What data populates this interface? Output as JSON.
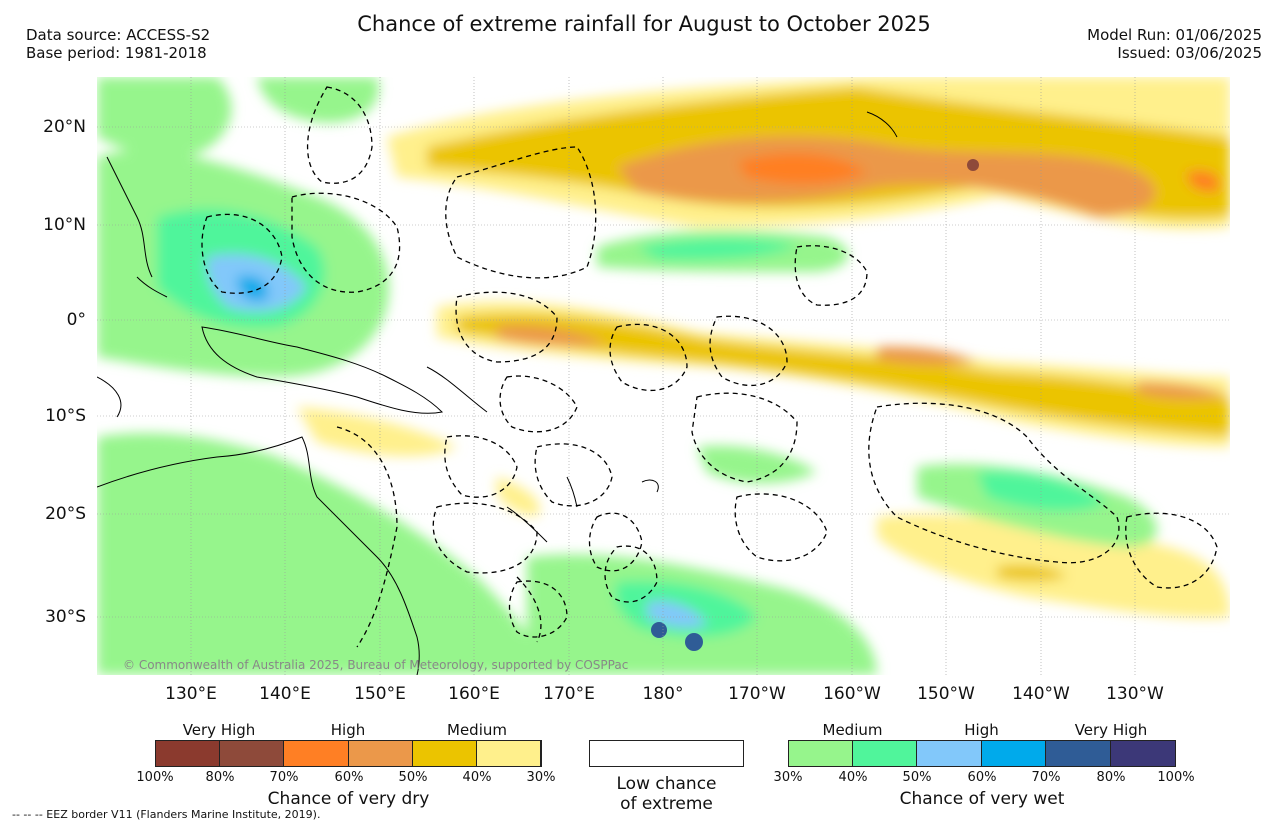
{
  "title": "Chance of extreme rainfall for August to October 2025",
  "data_source": "Data source: ACCESS-S2",
  "base_period": "Base period: 1981-2018",
  "model_run": "Model Run: 01/06/2025",
  "issued": "Issued: 03/06/2025",
  "copyright": "© Commonwealth of Australia 2025, Bureau of Meteorology, supported by COSPPac",
  "eez_note": "-- -- -- EEZ border V11 (Flanders Marine Institute, 2019).",
  "lat_labels": [
    "20°N",
    "10°N",
    "0°",
    "10°S",
    "20°S",
    "30°S"
  ],
  "lon_labels": [
    "130°E",
    "140°E",
    "150°E",
    "160°E",
    "170°E",
    "180°",
    "170°W",
    "160°W",
    "150°W",
    "140°W",
    "130°W"
  ],
  "dry_scale": {
    "categories": [
      "Very High",
      "High",
      "Medium"
    ],
    "colors": [
      "#8b3a2e",
      "#8e4a3a",
      "#ff7f24",
      "#eb984a",
      "#ebc400",
      "#fff08c"
    ],
    "ticks": [
      "100%",
      "80%",
      "70%",
      "60%",
      "50%",
      "40%",
      "30%"
    ],
    "caption": "Chance of very dry"
  },
  "neutral": {
    "caption_line1": "Low chance",
    "caption_line2": "of extreme",
    "color": "#ffffff"
  },
  "wet_scale": {
    "categories": [
      "Medium",
      "High",
      "Very High"
    ],
    "colors": [
      "#96f58c",
      "#50f59b",
      "#82c8fa",
      "#00aaeb",
      "#2f5c96",
      "#3c3878"
    ],
    "ticks": [
      "30%",
      "40%",
      "50%",
      "60%",
      "70%",
      "80%",
      "100%"
    ],
    "caption": "Chance of very wet"
  }
}
